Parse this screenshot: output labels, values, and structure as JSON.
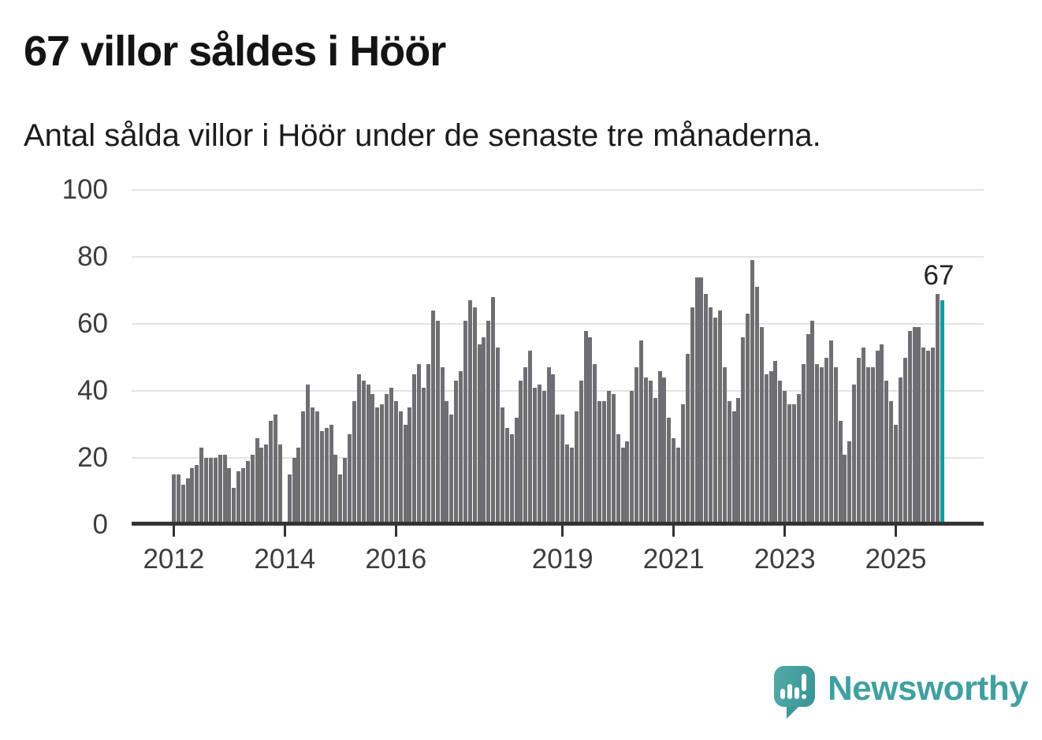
{
  "header": {
    "title": "67 villor såldes i Höör",
    "subtitle": "Antal sålda villor i Höör under de senaste tre månaderna."
  },
  "footer": {
    "brand": "Newsworthy",
    "brand_icon": "newsworthy-speech-bubble-bar-chart-icon"
  },
  "chart_data": {
    "type": "bar",
    "title": "67 villor såldes i Höör",
    "subtitle": "Antal sålda villor i Höör under de senaste tre månaderna.",
    "start_month": "2012-01",
    "end_month": "2025-11",
    "frequency": "monthly",
    "ylim": [
      0,
      100
    ],
    "y_ticks": [
      0,
      20,
      40,
      60,
      80,
      100
    ],
    "x_tick_years": [
      "2012",
      "2014",
      "2016",
      "2019",
      "2021",
      "2023",
      "2025"
    ],
    "grid": true,
    "annotation": "67",
    "highlight_last": true,
    "colors": {
      "bar": "#6e6e73",
      "highlight": "#149b9e",
      "gridline": "#e3e3e3",
      "axis": "#333333",
      "tick_text": "#3d3d3d",
      "brand_teal": "#41a0a0"
    },
    "values": [
      15,
      15,
      12,
      14,
      17,
      18,
      23,
      20,
      20,
      20,
      21,
      21,
      17,
      11,
      16,
      17,
      19,
      21,
      26,
      23,
      24,
      31,
      33,
      24,
      null,
      15,
      20,
      23,
      34,
      42,
      35,
      34,
      28,
      29,
      30,
      21,
      15,
      20,
      27,
      37,
      45,
      43,
      42,
      39,
      35,
      36,
      39,
      41,
      37,
      34,
      30,
      35,
      45,
      48,
      41,
      48,
      64,
      61,
      47,
      37,
      33,
      43,
      46,
      61,
      67,
      65,
      54,
      56,
      61,
      68,
      53,
      35,
      29,
      27,
      32,
      43,
      47,
      52,
      41,
      42,
      40,
      47,
      45,
      33,
      33,
      24,
      23,
      34,
      43,
      58,
      56,
      48,
      37,
      37,
      40,
      39,
      27,
      23,
      25,
      40,
      47,
      55,
      44,
      43,
      38,
      46,
      44,
      32,
      26,
      23,
      36,
      51,
      65,
      74,
      74,
      69,
      65,
      62,
      64,
      47,
      37,
      34,
      38,
      56,
      63,
      79,
      71,
      59,
      45,
      46,
      49,
      43,
      40,
      36,
      36,
      39,
      48,
      57,
      61,
      48,
      47,
      50,
      55,
      47,
      31,
      21,
      25,
      42,
      50,
      53,
      47,
      47,
      52,
      54,
      43,
      37,
      30,
      44,
      50,
      58,
      59,
      59,
      53,
      52,
      53,
      69,
      67
    ]
  }
}
